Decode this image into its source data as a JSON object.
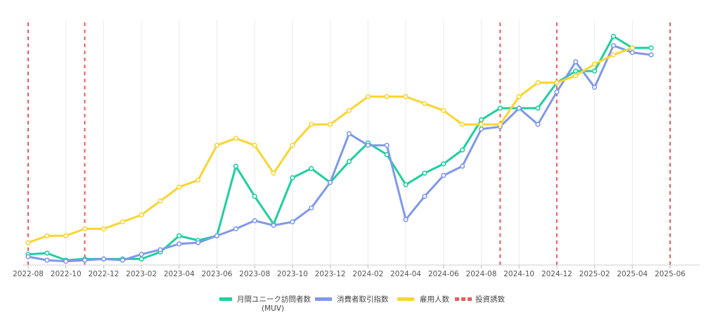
{
  "chart_data": {
    "type": "line",
    "title": "",
    "xlabel": "",
    "ylabel": "",
    "x": [
      "2022-08",
      "2022-09",
      "2022-10",
      "2022-11",
      "2022-12",
      "2023-01",
      "2023-02",
      "2023-03",
      "2023-04",
      "2023-05",
      "2023-06",
      "2023-07",
      "2023-08",
      "2023-09",
      "2023-10",
      "2023-11",
      "2023-12",
      "2024-01",
      "2024-02",
      "2024-03",
      "2024-04",
      "2024-05",
      "2024-06",
      "2024-07",
      "2024-08",
      "2024-09",
      "2024-10",
      "2024-11",
      "2024-12",
      "2025-01",
      "2025-02",
      "2025-03",
      "2025-04",
      "2025-05"
    ],
    "x_ticks": [
      "2022-08",
      "2022-10",
      "2022-12",
      "2023-02",
      "2023-04",
      "2023-06",
      "2023-08",
      "2023-10",
      "2023-12",
      "2024-02",
      "2024-04",
      "2024-06",
      "2024-08",
      "2024-10",
      "2024-12",
      "2025-02",
      "2025-04",
      "2025-06"
    ],
    "x_range": [
      "2022-08",
      "2025-06"
    ],
    "ylim": [
      0,
      100
    ],
    "y_axis_visible": false,
    "grid": "vertical",
    "legend_position": "bottom-center",
    "series": [
      {
        "name": "月間ユニーク訪問者数",
        "name_line2": "(MUV)",
        "color": "#1ecf9f",
        "style": "solid",
        "values": [
          4,
          4.5,
          1.5,
          2,
          2,
          2,
          2,
          5,
          12,
          10,
          12,
          42,
          29,
          17,
          37,
          41,
          35,
          44,
          52,
          47,
          34,
          39,
          43,
          49,
          62,
          67,
          67,
          67,
          78,
          83,
          83,
          98,
          93,
          93
        ]
      },
      {
        "name": "消費者取引指数",
        "color": "#7f98ea",
        "style": "solid",
        "values": [
          3,
          1.5,
          1,
          1.5,
          2,
          1.5,
          4,
          6,
          8.5,
          9,
          12,
          15,
          18.5,
          16.5,
          18,
          24,
          35,
          56,
          51,
          51,
          19,
          29,
          38,
          42,
          58,
          59,
          67,
          60,
          74,
          87,
          76,
          94,
          91,
          90
        ]
      },
      {
        "name": "雇用人数",
        "color": "#fad531",
        "style": "solid",
        "values": [
          9,
          12,
          12,
          15,
          15,
          18,
          21,
          27,
          33,
          36,
          51,
          54,
          51,
          39,
          51,
          60,
          60,
          66,
          72,
          72,
          72,
          69,
          66,
          60,
          60,
          60,
          72,
          78,
          78,
          81,
          86,
          90,
          93,
          null
        ]
      },
      {
        "name": "投資誘致",
        "color": "#ea5c5c",
        "style": "dashed",
        "events": [
          "2022-08",
          "2022-11",
          "2024-09",
          "2024-12",
          "2025-06"
        ]
      }
    ]
  }
}
